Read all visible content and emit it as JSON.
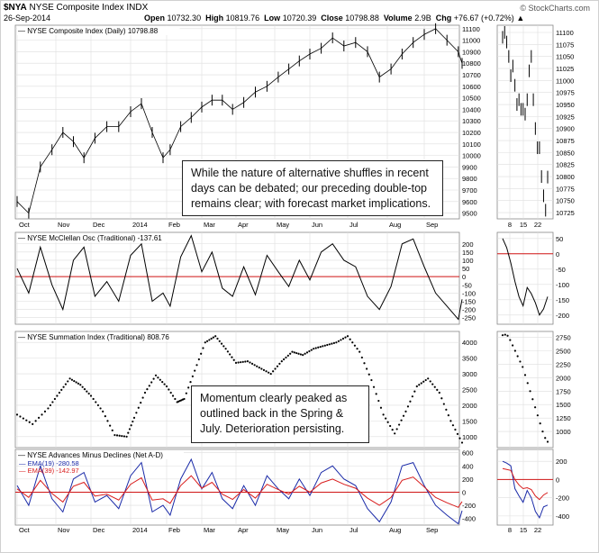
{
  "header": {
    "symbol": "$NYA",
    "name": "NYSE Composite Index",
    "exchange": "INDX",
    "date": "26-Sep-2014",
    "open_label": "Open",
    "open": "10732.30",
    "high_label": "High",
    "high": "10819.76",
    "low_label": "Low",
    "low": "10720.39",
    "close_label": "Close",
    "close": "10798.88",
    "volume_label": "Volume",
    "volume": "2.9B",
    "chg_label": "Chg",
    "chg": "+76.67 (+0.72%)",
    "watermark": "© StockCharts.com"
  },
  "notes": {
    "top": "While the nature of alternative shuffles in recent days can be debated; our preceding double-top remains clear; with forecast market implications.",
    "momentum": "Momentum clearly peaked as outlined back in the Spring & July. Deterioration persisting."
  },
  "x_axis": {
    "labels": [
      "Oct",
      "Nov",
      "Dec",
      "2014",
      "Feb",
      "Mar",
      "Apr",
      "May",
      "Jun",
      "Jul",
      "Aug",
      "Sep"
    ],
    "side_labels": [
      "8",
      "15",
      "22"
    ]
  },
  "colors": {
    "price": "#000000",
    "zero_line": "#d01515",
    "ema_fast": "#1a2aa8",
    "ema_slow": "#d81c1c",
    "grid": "#dedede"
  },
  "chart_data": [
    {
      "type": "line",
      "title": "NYSE Composite Index (Daily) 10798.88",
      "style": "ohlc-bars",
      "months": [
        "Oct",
        "Nov",
        "Dec",
        "2014",
        "Feb",
        "Mar",
        "Apr",
        "May",
        "Jun",
        "Jul",
        "Aug",
        "Sep"
      ],
      "x_range": [
        0,
        12.1
      ],
      "xs": [
        0,
        0.3,
        0.6,
        0.9,
        1.2,
        1.5,
        1.8,
        2.1,
        2.4,
        2.7,
        3.0,
        3.3,
        3.6,
        3.9,
        4.1,
        4.4,
        4.7,
        5.0,
        5.3,
        5.6,
        5.9,
        6.2,
        6.5,
        6.8,
        7.1,
        7.4,
        7.7,
        8.0,
        8.3,
        8.6,
        8.9,
        9.2,
        9.5,
        9.8,
        10.1,
        10.4,
        10.7,
        11.0,
        11.3,
        11.6,
        11.9,
        12.0
      ],
      "values": [
        9600,
        9500,
        9900,
        10050,
        10200,
        10120,
        9980,
        10150,
        10250,
        10250,
        10380,
        10450,
        10200,
        9980,
        10050,
        10250,
        10330,
        10420,
        10480,
        10480,
        10400,
        10460,
        10550,
        10600,
        10680,
        10750,
        10820,
        10880,
        10930,
        11020,
        10950,
        10980,
        10900,
        10680,
        10750,
        10880,
        10980,
        11050,
        11100,
        11000,
        10900,
        10799
      ],
      "y_range": [
        9450,
        11130
      ],
      "y_ticks": [
        9500,
        9600,
        9700,
        9800,
        9900,
        10000,
        10100,
        10200,
        10300,
        10400,
        10500,
        10600,
        10700,
        10800,
        10900,
        11000,
        11100
      ],
      "side": {
        "x_labels": [
          "8",
          "15",
          "22"
        ],
        "y_range": [
          10712,
          11115
        ],
        "y_ticks": [
          10725,
          10750,
          10775,
          10800,
          10825,
          10850,
          10875,
          10900,
          10925,
          10950,
          10975,
          11000,
          11025,
          11050,
          11075,
          11100
        ],
        "values": [
          11090,
          11100,
          11080,
          11050,
          11010,
          11030,
          10990,
          10950,
          10960,
          10940,
          10940,
          10930,
          10960,
          11020,
          11050,
          10960,
          10900,
          10860,
          10860,
          10800,
          10760,
          10730,
          10799
        ]
      }
    },
    {
      "type": "line",
      "title": "NYSE McClellan Osc (Traditional) -137.61",
      "x_range": [
        0,
        12.1
      ],
      "xs": [
        0,
        0.3,
        0.6,
        0.9,
        1.2,
        1.5,
        1.8,
        2.1,
        2.4,
        2.7,
        3.0,
        3.3,
        3.6,
        3.9,
        4.1,
        4.4,
        4.7,
        5.0,
        5.3,
        5.6,
        5.9,
        6.2,
        6.5,
        6.8,
        7.1,
        7.4,
        7.7,
        8.0,
        8.3,
        8.6,
        8.9,
        9.2,
        9.5,
        9.8,
        10.1,
        10.4,
        10.7,
        11.0,
        11.3,
        11.6,
        11.9,
        12.0
      ],
      "values": [
        50,
        -100,
        180,
        -50,
        -200,
        100,
        180,
        -120,
        -30,
        -150,
        130,
        200,
        -150,
        -100,
        -180,
        120,
        250,
        30,
        150,
        -70,
        -120,
        60,
        -110,
        130,
        30,
        -60,
        100,
        -20,
        150,
        200,
        100,
        60,
        -120,
        -200,
        -60,
        200,
        230,
        60,
        -100,
        -180,
        -260,
        -138
      ],
      "y_range": [
        -290,
        270
      ],
      "y_ticks": [
        -250,
        -200,
        -150,
        -100,
        -50,
        0,
        50,
        100,
        150,
        200
      ],
      "zero": 0,
      "side": {
        "y_range": [
          -230,
          70
        ],
        "y_ticks": [
          -200,
          -150,
          -100,
          -50,
          0,
          50
        ],
        "values": [
          50,
          20,
          -30,
          -90,
          -140,
          -170,
          -110,
          -130,
          -160,
          -200,
          -180,
          -140
        ]
      }
    },
    {
      "type": "scatter",
      "title": "NYSE Summation Index (Traditional) 808.76",
      "x_range": [
        0,
        12.1
      ],
      "xs": [
        0,
        0.4,
        0.8,
        1.1,
        1.4,
        1.7,
        2.0,
        2.3,
        2.6,
        2.9,
        3.1,
        3.4,
        3.7,
        4.0,
        4.3,
        4.5,
        4.8,
        5.1,
        5.4,
        5.7,
        6.0,
        6.3,
        6.6,
        6.9,
        7.2,
        7.5,
        7.8,
        8.1,
        8.4,
        8.7,
        9.0,
        9.3,
        9.6,
        9.9,
        10.2,
        10.5,
        10.8,
        11.1,
        11.4,
        11.7,
        12.0
      ],
      "values": [
        1700,
        1400,
        1900,
        2400,
        2850,
        2650,
        2300,
        1800,
        1050,
        1000,
        1600,
        2400,
        2950,
        2600,
        2100,
        2200,
        3100,
        4000,
        4200,
        3800,
        3350,
        3400,
        3200,
        3000,
        3400,
        3700,
        3600,
        3800,
        3900,
        4000,
        4200,
        3700,
        2800,
        1700,
        1100,
        1800,
        2600,
        2850,
        2400,
        1500,
        809
      ],
      "y_range": [
        650,
        4350
      ],
      "y_ticks": [
        1000,
        1500,
        2000,
        2500,
        3000,
        3500,
        4000
      ],
      "side": {
        "y_range": [
          700,
          2860
        ],
        "y_ticks": [
          1000,
          1250,
          1500,
          1750,
          2000,
          2250,
          2500,
          2750
        ],
        "values": [
          2790,
          2800,
          2780,
          2700,
          2600,
          2500,
          2400,
          2300,
          2200,
          2050,
          1900,
          1750,
          1600,
          1450,
          1300,
          1150,
          1000,
          880,
          809
        ]
      }
    },
    {
      "type": "line",
      "title": "NYSE Advances Minus Declines (Net A-D)",
      "x_range": [
        0,
        12.1
      ],
      "xs": [
        0,
        0.3,
        0.6,
        0.9,
        1.2,
        1.5,
        1.8,
        2.1,
        2.4,
        2.7,
        3.0,
        3.3,
        3.6,
        3.9,
        4.1,
        4.4,
        4.7,
        5.0,
        5.3,
        5.6,
        5.9,
        6.2,
        6.5,
        6.8,
        7.1,
        7.4,
        7.7,
        8.0,
        8.3,
        8.6,
        8.9,
        9.2,
        9.5,
        9.8,
        10.1,
        10.4,
        10.7,
        11.0,
        11.3,
        11.6,
        11.9,
        12.0
      ],
      "series": [
        {
          "name": "EMA(19) -280.58",
          "values": [
            100,
            -200,
            400,
            -100,
            -300,
            200,
            300,
            -150,
            -50,
            -250,
            250,
            450,
            -300,
            -200,
            -350,
            200,
            500,
            50,
            300,
            -100,
            -250,
            100,
            -200,
            250,
            50,
            -100,
            200,
            -50,
            300,
            400,
            200,
            100,
            -250,
            -450,
            -150,
            400,
            450,
            100,
            -200,
            -350,
            -480,
            -281
          ]
        },
        {
          "name": "EMA(39) -142.97",
          "values": [
            50,
            -80,
            180,
            -20,
            -150,
            90,
            150,
            -60,
            -30,
            -120,
            120,
            220,
            -120,
            -100,
            -170,
            100,
            250,
            60,
            150,
            -30,
            -110,
            40,
            -90,
            120,
            40,
            -30,
            90,
            0,
            140,
            200,
            120,
            60,
            -90,
            -200,
            -80,
            180,
            230,
            80,
            -80,
            -160,
            -230,
            -143
          ]
        }
      ],
      "y_range": [
        -500,
        650
      ],
      "y_ticks": [
        -400,
        -200,
        0,
        200,
        400,
        600
      ],
      "zero": 0,
      "side": {
        "y_range": [
          -500,
          330
        ],
        "y_ticks": [
          -400,
          -200,
          0,
          200
        ],
        "fast_values": [
          200,
          180,
          150,
          -100,
          -180,
          -250,
          -120,
          -200,
          -350,
          -420,
          -300,
          -281
        ],
        "slow_values": [
          120,
          110,
          100,
          0,
          -60,
          -100,
          -90,
          -110,
          -180,
          -220,
          -170,
          -143
        ]
      }
    }
  ]
}
